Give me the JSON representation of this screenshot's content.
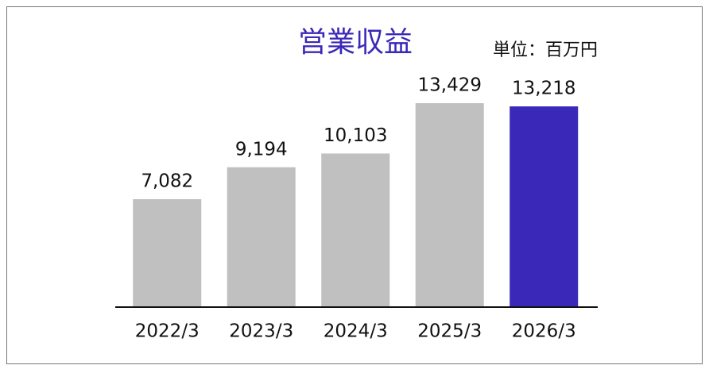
{
  "chart_data": {
    "type": "bar",
    "title": "営業収益",
    "unit_label": "単位：百万円",
    "categories": [
      "2022/3",
      "2023/3",
      "2024/3",
      "2025/3",
      "2026/3"
    ],
    "values": [
      7082,
      9194,
      10103,
      13429,
      13218
    ],
    "value_labels": [
      "7,082",
      "9,194",
      "10,103",
      "13,429",
      "13,218"
    ],
    "colors": [
      "#c0c0c0",
      "#c0c0c0",
      "#c0c0c0",
      "#c0c0c0",
      "#3a28b8"
    ]
  }
}
